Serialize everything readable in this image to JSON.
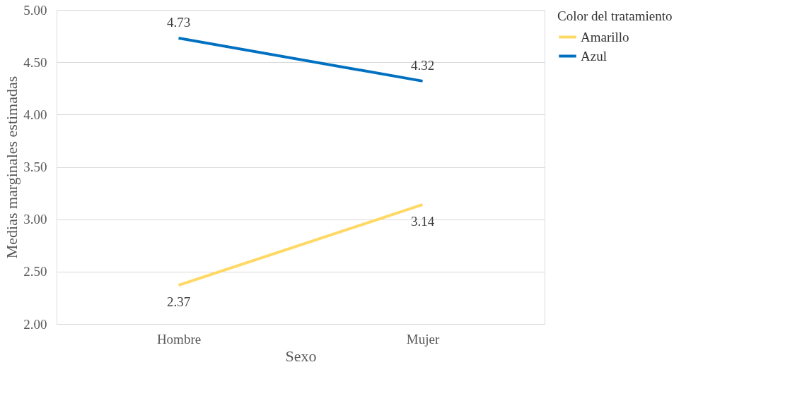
{
  "chart_data": {
    "type": "line",
    "xlabel": "Sexo",
    "ylabel": "Medias marginales estimadas",
    "legend_title": "Color del tratamiento",
    "categories": [
      "Hombre",
      "Mujer"
    ],
    "series": [
      {
        "name": "Amarillo",
        "color": "#ffd966",
        "values": [
          2.37,
          3.14
        ]
      },
      {
        "name": "Azul",
        "color": "#0070c0",
        "values": [
          4.73,
          4.32
        ]
      }
    ],
    "ylim": [
      2,
      5
    ],
    "yticks": [
      {
        "value": 2,
        "label": "2.00"
      },
      {
        "value": 2.5,
        "label": "2.50"
      },
      {
        "value": 3,
        "label": "3.00"
      },
      {
        "value": 3.5,
        "label": "3.50"
      },
      {
        "value": 4,
        "label": "4.00"
      },
      {
        "value": 4.5,
        "label": "4.50"
      },
      {
        "value": 5,
        "label": "5.00"
      }
    ],
    "grid": "y",
    "legend": "right",
    "data_labels": true,
    "marker": "none",
    "line_style": "solid"
  }
}
